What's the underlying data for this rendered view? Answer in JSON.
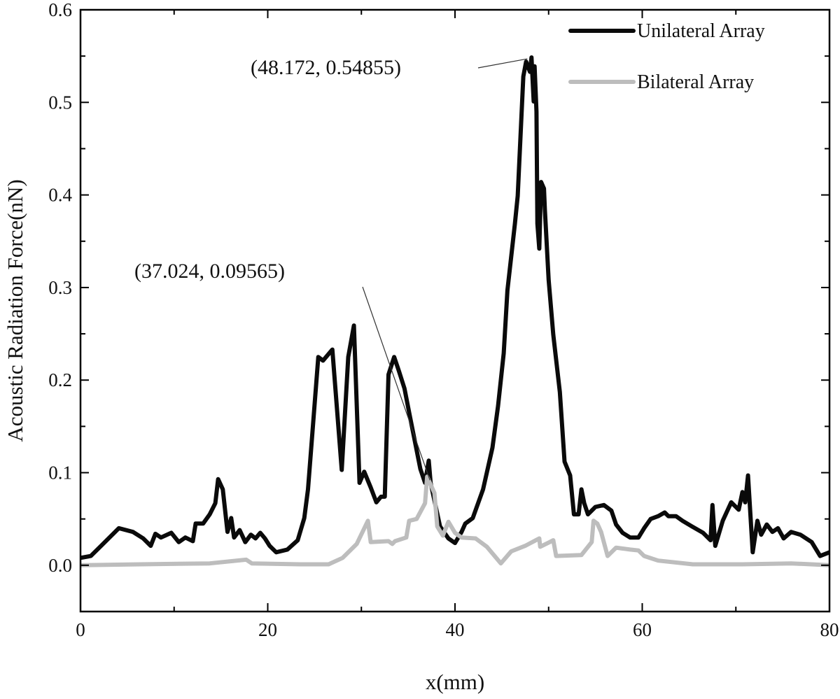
{
  "chart_data": {
    "type": "line",
    "title": "",
    "xlabel": "x(mm)",
    "ylabel": "Acoustic Radiation Force(nN)",
    "xlim": [
      0,
      80
    ],
    "ylim": [
      -0.05,
      0.6
    ],
    "xticks": [
      0,
      20,
      40,
      60,
      80
    ],
    "xtick_labels": [
      "0",
      "20",
      "40",
      "60",
      "80"
    ],
    "yticks": [
      0.0,
      0.1,
      0.2,
      0.3,
      0.4,
      0.5,
      0.6
    ],
    "ytick_labels": [
      "0.0",
      "0.1",
      "0.2",
      "0.3",
      "0.4",
      "0.5",
      "0.6"
    ],
    "grid": false,
    "legend_position": "top-right",
    "series": [
      {
        "name": "Unilateral Array",
        "color": "#0a0a0a",
        "x": [
          0.0,
          1.1,
          2.2,
          4.1,
          5.6,
          6.7,
          7.5,
          8.0,
          8.6,
          9.7,
          10.5,
          11.2,
          12.0,
          12.3,
          13.1,
          13.8,
          14.4,
          14.7,
          15.2,
          15.7,
          16.1,
          16.4,
          17.0,
          17.6,
          18.2,
          18.7,
          19.2,
          19.7,
          20.2,
          20.9,
          22.1,
          23.2,
          23.9,
          24.3,
          25.4,
          25.9,
          26.9,
          27.9,
          28.6,
          29.2,
          29.8,
          30.3,
          31.0,
          31.6,
          32.1,
          32.5,
          32.9,
          33.5,
          34.0,
          34.6,
          35.1,
          36.3,
          36.8,
          37.2,
          37.4,
          38.4,
          39.3,
          40.0,
          40.7,
          41.1,
          41.9,
          43.0,
          44.0,
          44.6,
          45.2,
          45.6,
          46.4,
          46.7,
          47.3,
          47.6,
          48.0,
          48.172,
          48.4,
          48.5,
          48.7,
          48.8,
          49.0,
          49.2,
          49.5,
          49.6,
          50.0,
          50.5,
          51.2,
          51.7,
          52.3,
          52.7,
          53.2,
          53.5,
          53.8,
          54.2,
          55.0,
          55.9,
          56.7,
          57.2,
          57.9,
          58.7,
          59.6,
          60.2,
          60.9,
          61.7,
          62.4,
          62.8,
          63.6,
          64.3,
          65.3,
          66.5,
          67.3,
          67.5,
          67.8,
          68.6,
          69.5,
          70.3,
          70.7,
          71.0,
          71.3,
          71.8,
          72.3,
          72.7,
          73.3,
          73.9,
          74.5,
          75.1,
          75.9,
          76.9,
          78.1,
          79.0,
          80.0
        ],
        "y": [
          0.008,
          0.01,
          0.021,
          0.04,
          0.036,
          0.029,
          0.021,
          0.034,
          0.03,
          0.035,
          0.025,
          0.03,
          0.026,
          0.045,
          0.045,
          0.055,
          0.067,
          0.093,
          0.082,
          0.036,
          0.051,
          0.03,
          0.038,
          0.025,
          0.033,
          0.029,
          0.035,
          0.029,
          0.021,
          0.014,
          0.017,
          0.027,
          0.051,
          0.082,
          0.225,
          0.221,
          0.233,
          0.103,
          0.225,
          0.259,
          0.089,
          0.101,
          0.084,
          0.068,
          0.074,
          0.074,
          0.206,
          0.225,
          0.21,
          0.191,
          0.165,
          0.104,
          0.089,
          0.113,
          0.089,
          0.042,
          0.029,
          0.024,
          0.036,
          0.045,
          0.051,
          0.082,
          0.127,
          0.172,
          0.229,
          0.297,
          0.369,
          0.399,
          0.528,
          0.544,
          0.533,
          0.54855,
          0.501,
          0.539,
          0.49,
          0.369,
          0.342,
          0.414,
          0.407,
          0.384,
          0.308,
          0.249,
          0.187,
          0.112,
          0.097,
          0.055,
          0.055,
          0.082,
          0.067,
          0.055,
          0.063,
          0.065,
          0.059,
          0.044,
          0.035,
          0.03,
          0.03,
          0.04,
          0.05,
          0.053,
          0.057,
          0.053,
          0.053,
          0.048,
          0.042,
          0.035,
          0.027,
          0.065,
          0.021,
          0.048,
          0.068,
          0.06,
          0.079,
          0.068,
          0.097,
          0.014,
          0.048,
          0.033,
          0.044,
          0.036,
          0.04,
          0.029,
          0.036,
          0.033,
          0.025,
          0.01,
          0.014
        ]
      },
      {
        "name": "Bilateral Array",
        "color": "#bdbdbd",
        "x": [
          0.0,
          6.4,
          13.8,
          17.7,
          18.3,
          23.5,
          26.5,
          28.0,
          29.5,
          30.7,
          31.0,
          32.9,
          33.3,
          33.6,
          34.8,
          35.1,
          35.9,
          36.8,
          37.024,
          37.8,
          38.1,
          38.7,
          39.3,
          40.0,
          40.7,
          42.2,
          43.4,
          44.9,
          46.0,
          47.5,
          49.0,
          49.1,
          50.1,
          50.5,
          50.8,
          53.5,
          54.6,
          54.8,
          55.2,
          55.6,
          56.3,
          57.2,
          58.7,
          59.6,
          60.2,
          61.7,
          65.4,
          70.7,
          75.9,
          80.0
        ],
        "y": [
          0.0,
          0.001,
          0.002,
          0.006,
          0.002,
          0.001,
          0.001,
          0.008,
          0.023,
          0.048,
          0.025,
          0.026,
          0.023,
          0.026,
          0.03,
          0.048,
          0.05,
          0.067,
          0.09565,
          0.078,
          0.042,
          0.032,
          0.047,
          0.035,
          0.03,
          0.029,
          0.02,
          0.002,
          0.015,
          0.021,
          0.029,
          0.02,
          0.025,
          0.027,
          0.01,
          0.011,
          0.025,
          0.048,
          0.045,
          0.036,
          0.01,
          0.019,
          0.017,
          0.016,
          0.01,
          0.005,
          0.001,
          0.001,
          0.002,
          0.0
        ]
      }
    ],
    "annotations": [
      {
        "text": "(48.172, 0.54855)",
        "x": 48.172,
        "y": 0.54855
      },
      {
        "text": "(37.024, 0.09565)",
        "x": 37.024,
        "y": 0.09565
      }
    ]
  }
}
